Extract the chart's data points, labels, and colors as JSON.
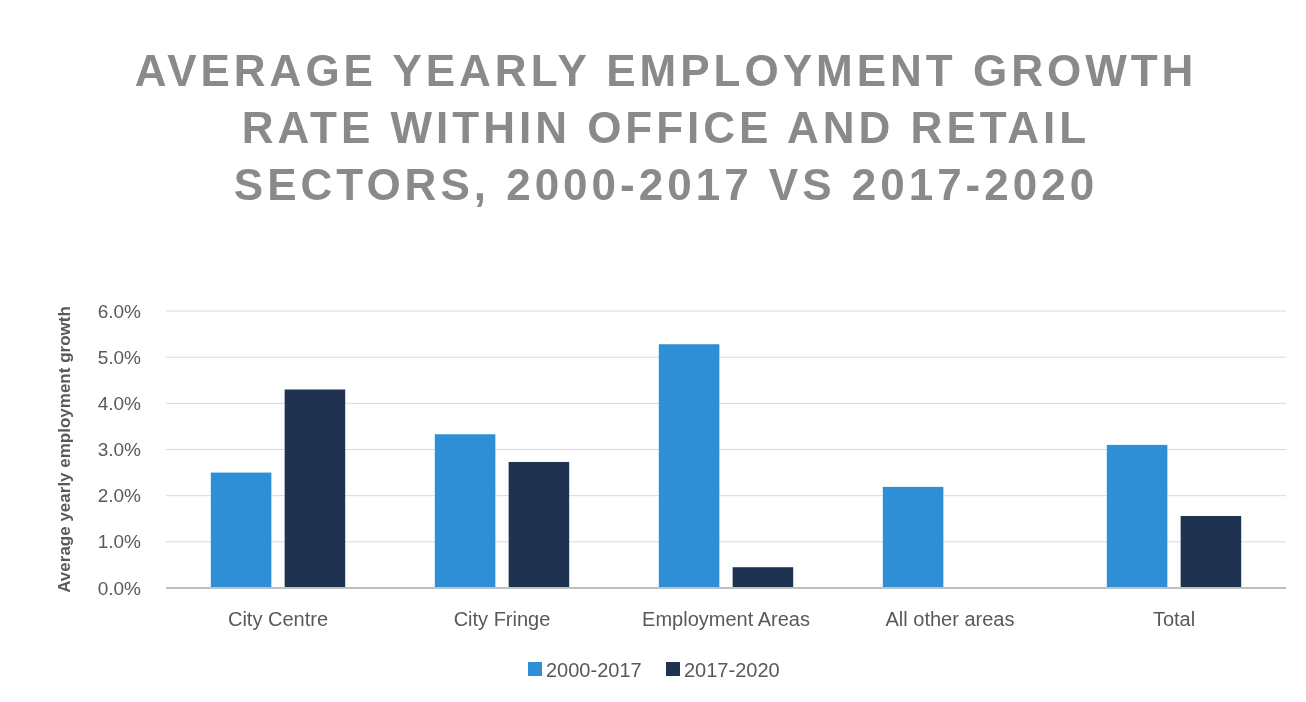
{
  "chart_data": {
    "type": "bar",
    "title": "AVERAGE YEARLY EMPLOYMENT GROWTH RATE WITHIN OFFICE AND RETAIL SECTORS, 2000-2017 VS 2017-2020",
    "ylabel": "Average yearly employment growth",
    "categories": [
      "City Centre",
      "City Fringe",
      "Employment Areas",
      "All other areas",
      "Total"
    ],
    "series": [
      {
        "name": "2000-2017",
        "color": "#2e8fd6",
        "values": [
          2.5,
          3.33,
          5.28,
          2.19,
          3.1
        ]
      },
      {
        "name": "2017-2020",
        "color": "#1f3350",
        "values": [
          4.3,
          2.73,
          0.45,
          0,
          1.56
        ]
      }
    ],
    "ylim": [
      0,
      6
    ],
    "yticks": [
      {
        "value": 0,
        "label": "0.0%"
      },
      {
        "value": 1,
        "label": "1.0%"
      },
      {
        "value": 2,
        "label": "2.0%"
      },
      {
        "value": 3,
        "label": "3.0%"
      },
      {
        "value": 4,
        "label": "4.0%"
      },
      {
        "value": 5,
        "label": "5.0%"
      },
      {
        "value": 6,
        "label": "6.0%"
      }
    ],
    "grid": "y",
    "legend": "bottom"
  }
}
